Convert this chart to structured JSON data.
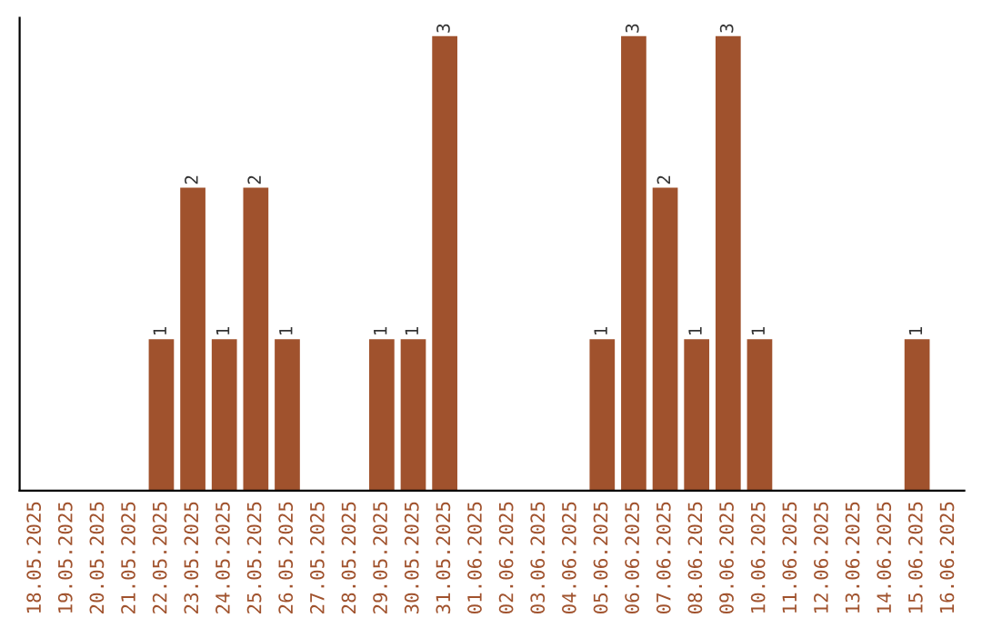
{
  "chart_data": {
    "type": "bar",
    "categories": [
      "18.05.2025",
      "19.05.2025",
      "20.05.2025",
      "21.05.2025",
      "22.05.2025",
      "23.05.2025",
      "24.05.2025",
      "25.05.2025",
      "26.05.2025",
      "27.05.2025",
      "28.05.2025",
      "29.05.2025",
      "30.05.2025",
      "31.05.2025",
      "01.06.2025",
      "02.06.2025",
      "03.06.2025",
      "04.06.2025",
      "05.06.2025",
      "06.06.2025",
      "07.06.2025",
      "08.06.2025",
      "09.06.2025",
      "10.06.2025",
      "11.06.2025",
      "12.06.2025",
      "13.06.2025",
      "14.06.2025",
      "15.06.2025",
      "16.06.2025"
    ],
    "values": [
      0,
      0,
      0,
      0,
      1,
      2,
      1,
      2,
      1,
      0,
      0,
      1,
      1,
      3,
      0,
      0,
      0,
      0,
      1,
      3,
      2,
      1,
      3,
      1,
      0,
      0,
      0,
      0,
      1,
      0
    ],
    "value_labels": [
      null,
      null,
      null,
      null,
      "1",
      "2",
      "1",
      "2",
      "1",
      null,
      null,
      "1",
      "1",
      "3",
      null,
      null,
      null,
      null,
      "1",
      "3",
      "2",
      "1",
      "3",
      "1",
      null,
      null,
      null,
      null,
      "1",
      null
    ],
    "color": "#a0522d",
    "tick_labels": "x",
    "grid": false,
    "legend": false
  }
}
